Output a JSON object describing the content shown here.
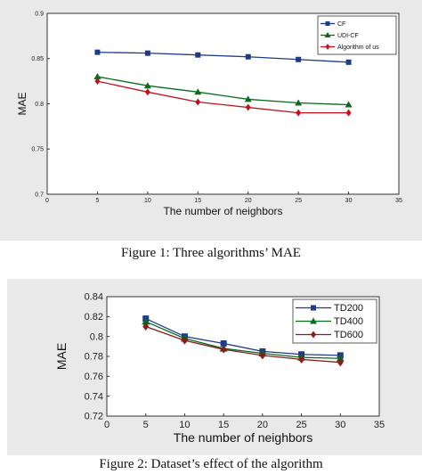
{
  "charts": [
    {
      "type": "line",
      "xlabel": "The number of neighbors",
      "ylabel": "MAE",
      "xlim": [
        0,
        35
      ],
      "ylim": [
        0.7,
        0.9
      ],
      "xticks": [
        0,
        5,
        10,
        15,
        20,
        25,
        30,
        35
      ],
      "yticks": [
        0.7,
        0.75,
        0.8,
        0.85,
        0.9
      ],
      "ytick_labels": [
        "0.7",
        "0.75",
        "0.8",
        "0.85",
        "0.9"
      ],
      "x": [
        5,
        10,
        15,
        20,
        25,
        30
      ],
      "legend_position": "top-right",
      "series": [
        {
          "name": "CF",
          "values": [
            0.857,
            0.856,
            0.854,
            0.852,
            0.849,
            0.846
          ],
          "color": "#1e3a8a",
          "marker": "square"
        },
        {
          "name": "UDI-CF",
          "values": [
            0.83,
            0.82,
            0.813,
            0.805,
            0.801,
            0.799
          ],
          "color": "#0a6b1e",
          "marker": "triangle"
        },
        {
          "name": "Algorithm of us",
          "values": [
            0.825,
            0.813,
            0.802,
            0.796,
            0.79,
            0.79
          ],
          "color": "#c1121f",
          "marker": "diamond"
        }
      ]
    },
    {
      "type": "line",
      "xlabel": "The number of neighbors",
      "ylabel": "MAE",
      "xlim": [
        0,
        35
      ],
      "ylim": [
        0.72,
        0.84
      ],
      "xticks": [
        0,
        5,
        10,
        15,
        20,
        25,
        30,
        35
      ],
      "yticks": [
        0.72,
        0.74,
        0.76,
        0.78,
        0.8,
        0.82,
        0.84
      ],
      "ytick_labels": [
        "0.72",
        "0.74",
        "0.76",
        "0.78",
        "0.8",
        "0.82",
        "0.84"
      ],
      "x": [
        5,
        10,
        15,
        20,
        25,
        30
      ],
      "legend_position": "top-right",
      "series": [
        {
          "name": "TD200",
          "values": [
            0.818,
            0.8,
            0.793,
            0.785,
            0.782,
            0.781
          ],
          "color": "#1e3a8a",
          "marker": "square"
        },
        {
          "name": "TD400",
          "values": [
            0.815,
            0.798,
            0.788,
            0.783,
            0.779,
            0.778
          ],
          "color": "#0a6b1e",
          "marker": "triangle"
        },
        {
          "name": "TD600",
          "values": [
            0.81,
            0.796,
            0.787,
            0.781,
            0.777,
            0.774
          ],
          "color": "#8b1a1a",
          "marker": "diamond"
        }
      ]
    }
  ],
  "captions": {
    "figure1": "Figure 1: Three algorithms’ MAE",
    "figure2": "Figure 2: Dataset’s effect of the algorithm"
  }
}
